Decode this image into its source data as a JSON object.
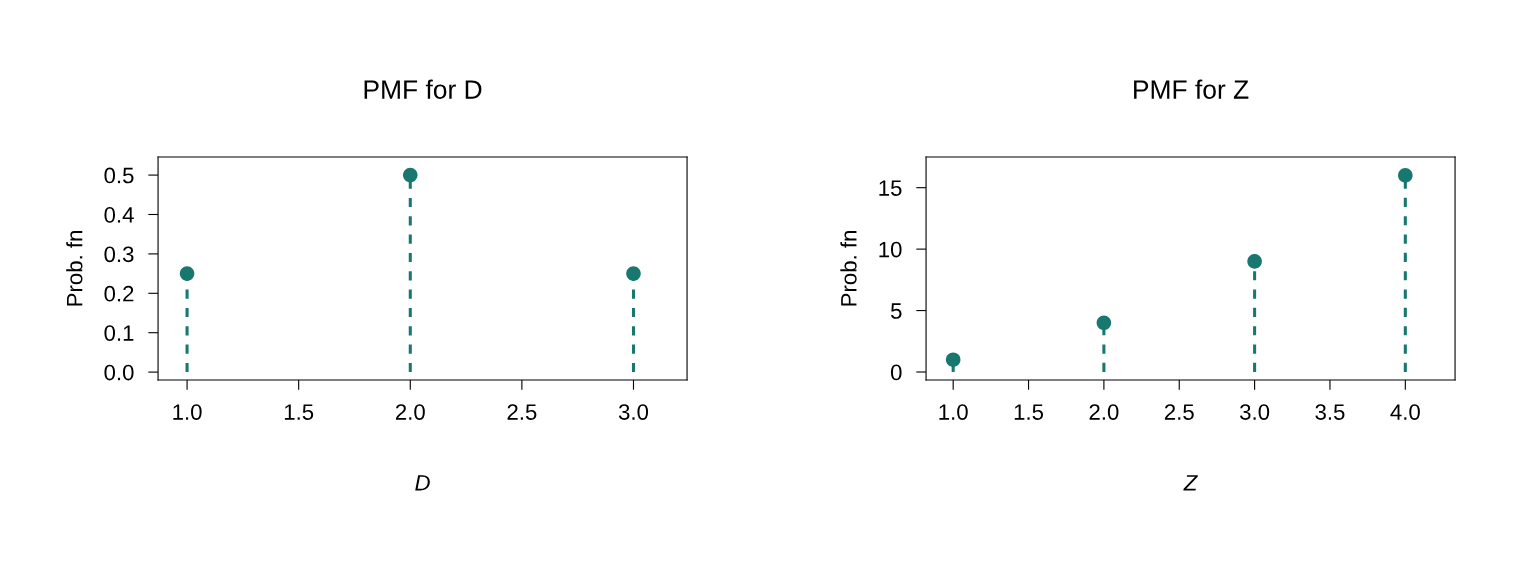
{
  "chart_data": [
    {
      "type": "lollipop",
      "title": "PMF for D",
      "xlabel": "D",
      "ylabel": "Prob. fn",
      "x": [
        1,
        2,
        3
      ],
      "values": [
        0.25,
        0.5,
        0.25
      ],
      "color": "#18786f",
      "marker": "circle",
      "line_style": "dashed",
      "grid": false,
      "xlim": [
        0.87,
        3.24
      ],
      "ylim": [
        -0.02,
        0.546
      ],
      "xticks": [
        {
          "value": 1,
          "label": "1.0"
        },
        {
          "value": 1.5,
          "label": "1.5"
        },
        {
          "value": 2,
          "label": "2.0"
        },
        {
          "value": 2.5,
          "label": "2.5"
        },
        {
          "value": 3,
          "label": "3.0"
        }
      ],
      "yticks": [
        {
          "value": 0,
          "label": "0.0"
        },
        0.1,
        0.2,
        0.3,
        0.4,
        0.5
      ]
    },
    {
      "type": "lollipop",
      "title": "PMF for Z",
      "xlabel": "Z",
      "ylabel": "Prob. fn",
      "x": [
        1,
        2,
        3,
        4
      ],
      "values": [
        1,
        4,
        9,
        16
      ],
      "color": "#18786f",
      "marker": "circle",
      "line_style": "dashed",
      "grid": false,
      "xlim": [
        0.82,
        4.33
      ],
      "ylim": [
        -0.65,
        17.5
      ],
      "xticks": [
        {
          "value": 1,
          "label": "1.0"
        },
        {
          "value": 1.5,
          "label": "1.5"
        },
        {
          "value": 2,
          "label": "2.0"
        },
        {
          "value": 2.5,
          "label": "2.5"
        },
        {
          "value": 3,
          "label": "3.0"
        },
        {
          "value": 3.5,
          "label": "3.5"
        },
        {
          "value": 4,
          "label": "4.0"
        }
      ],
      "yticks": [
        0,
        5,
        10,
        15
      ]
    }
  ]
}
